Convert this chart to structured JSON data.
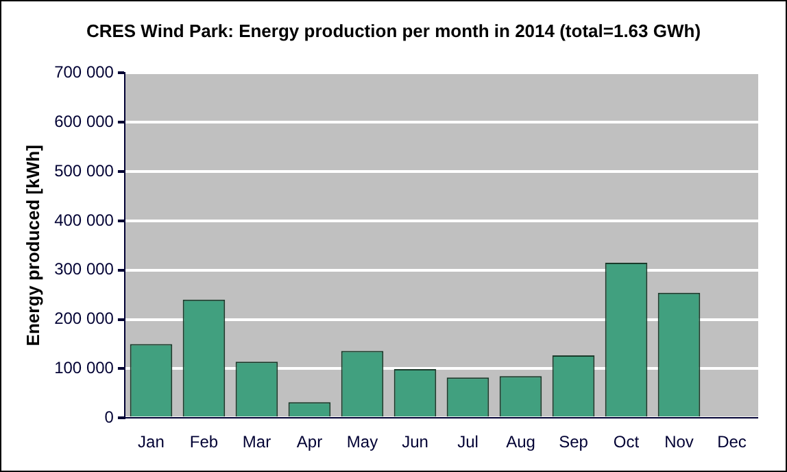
{
  "chart_data": {
    "type": "bar",
    "title": "CRES Wind Park: Energy production per month in 2014 (total=1.63 GWh)",
    "ylabel": "Energy produced [kWh]",
    "categories": [
      "Jan",
      "Feb",
      "Mar",
      "Apr",
      "May",
      "Jun",
      "Jul",
      "Aug",
      "Sep",
      "Oct",
      "Nov",
      "Dec"
    ],
    "values": [
      150000,
      240000,
      114000,
      32000,
      136000,
      99000,
      82000,
      85000,
      127000,
      315000,
      254000,
      0
    ],
    "color": "#41a07f",
    "ylim": [
      0,
      700000
    ],
    "yticks": [
      0,
      100000,
      200000,
      300000,
      400000,
      500000,
      600000,
      700000
    ],
    "grid": "y",
    "legend": false
  }
}
